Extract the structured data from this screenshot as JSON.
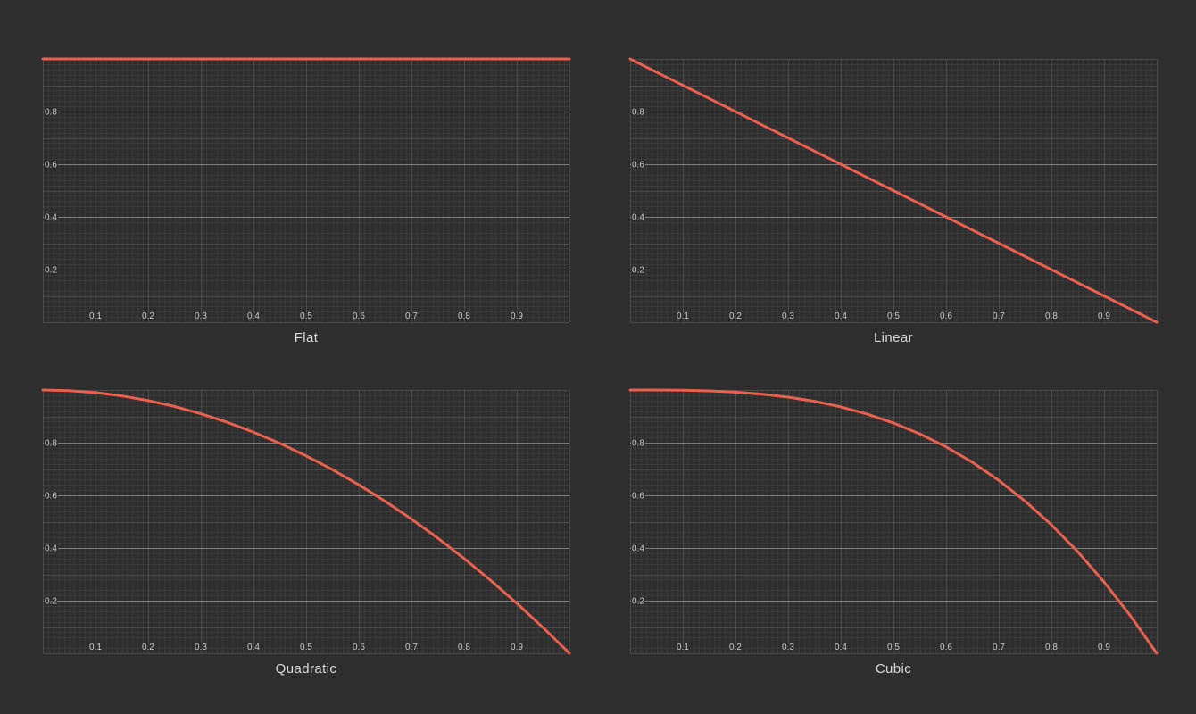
{
  "page": {
    "background_color": "#2e2e2e",
    "layout": "2x2-chart-grid"
  },
  "chart_style": {
    "curve_color": "#e8614e",
    "curve_width": 3,
    "plot_background": "#2e2e2e",
    "grid_minor_color": "rgba(255,255,255,0.055)",
    "grid_major_color": "rgba(255,255,255,0.13)",
    "grid_labeled_color": "rgba(255,255,255,0.38)",
    "tick_label_color": "#cccccc",
    "title_color": "#d9d9d9",
    "x_minor_step": 0.01,
    "x_major_step": 0.1,
    "y_minor_step": 0.02,
    "y_major_step": 0.1,
    "y_labeled_step": 0.2
  },
  "chart_data": [
    {
      "type": "line",
      "title": "Flat",
      "xlabel": "",
      "ylabel": "",
      "xlim": [
        0,
        1
      ],
      "ylim": [
        0,
        1
      ],
      "xticks": [
        "0.1",
        "0.2",
        "0.3",
        "0.4",
        "0.5",
        "0.6",
        "0.7",
        "0.8",
        "0.9"
      ],
      "yticks": [
        "0.2",
        "0.4",
        "0.6",
        "0.8"
      ],
      "grid": true,
      "legend": false,
      "x": [
        0,
        0.05,
        0.1,
        0.15,
        0.2,
        0.25,
        0.3,
        0.35,
        0.4,
        0.45,
        0.5,
        0.55,
        0.6,
        0.65,
        0.7,
        0.75,
        0.8,
        0.85,
        0.9,
        0.95,
        1
      ],
      "y": [
        1,
        1,
        1,
        1,
        1,
        1,
        1,
        1,
        1,
        1,
        1,
        1,
        1,
        1,
        1,
        1,
        1,
        1,
        1,
        1,
        1
      ]
    },
    {
      "type": "line",
      "title": "Linear",
      "xlabel": "",
      "ylabel": "",
      "xlim": [
        0,
        1
      ],
      "ylim": [
        0,
        1
      ],
      "xticks": [
        "0.1",
        "0.2",
        "0.3",
        "0.4",
        "0.5",
        "0.6",
        "0.7",
        "0.8",
        "0.9"
      ],
      "yticks": [
        "0.2",
        "0.4",
        "0.6",
        "0.8"
      ],
      "grid": true,
      "legend": false,
      "x": [
        0,
        0.05,
        0.1,
        0.15,
        0.2,
        0.25,
        0.3,
        0.35,
        0.4,
        0.45,
        0.5,
        0.55,
        0.6,
        0.65,
        0.7,
        0.75,
        0.8,
        0.85,
        0.9,
        0.95,
        1
      ],
      "y": [
        1,
        0.95,
        0.9,
        0.85,
        0.8,
        0.75,
        0.7,
        0.65,
        0.6,
        0.55,
        0.5,
        0.45,
        0.4,
        0.35,
        0.3,
        0.25,
        0.2,
        0.15,
        0.1,
        0.05,
        0
      ]
    },
    {
      "type": "line",
      "title": "Quadratic",
      "xlabel": "",
      "ylabel": "",
      "xlim": [
        0,
        1
      ],
      "ylim": [
        0,
        1
      ],
      "xticks": [
        "0.1",
        "0.2",
        "0.3",
        "0.4",
        "0.5",
        "0.6",
        "0.7",
        "0.8",
        "0.9"
      ],
      "yticks": [
        "0.2",
        "0.4",
        "0.6",
        "0.8"
      ],
      "grid": true,
      "legend": false,
      "x": [
        0,
        0.05,
        0.1,
        0.15,
        0.2,
        0.25,
        0.3,
        0.35,
        0.4,
        0.45,
        0.5,
        0.55,
        0.6,
        0.65,
        0.7,
        0.75,
        0.8,
        0.85,
        0.9,
        0.95,
        1
      ],
      "y": [
        1,
        0.9975,
        0.99,
        0.9775,
        0.96,
        0.9375,
        0.91,
        0.8775,
        0.84,
        0.7975,
        0.75,
        0.6975,
        0.64,
        0.5775,
        0.51,
        0.4375,
        0.36,
        0.2775,
        0.19,
        0.0975,
        0
      ]
    },
    {
      "type": "line",
      "title": "Cubic",
      "xlabel": "",
      "ylabel": "",
      "xlim": [
        0,
        1
      ],
      "ylim": [
        0,
        1
      ],
      "xticks": [
        "0.1",
        "0.2",
        "0.3",
        "0.4",
        "0.5",
        "0.6",
        "0.7",
        "0.8",
        "0.9"
      ],
      "yticks": [
        "0.2",
        "0.4",
        "0.6",
        "0.8"
      ],
      "grid": true,
      "legend": false,
      "x": [
        0,
        0.05,
        0.1,
        0.15,
        0.2,
        0.25,
        0.3,
        0.35,
        0.4,
        0.45,
        0.5,
        0.55,
        0.6,
        0.65,
        0.7,
        0.75,
        0.8,
        0.85,
        0.9,
        0.95,
        1
      ],
      "y": [
        1,
        0.999875,
        0.999,
        0.996625,
        0.992,
        0.984375,
        0.973,
        0.957125,
        0.936,
        0.908875,
        0.875,
        0.833625,
        0.784,
        0.725375,
        0.657,
        0.578125,
        0.488,
        0.385875,
        0.271,
        0.142625,
        0
      ]
    }
  ]
}
